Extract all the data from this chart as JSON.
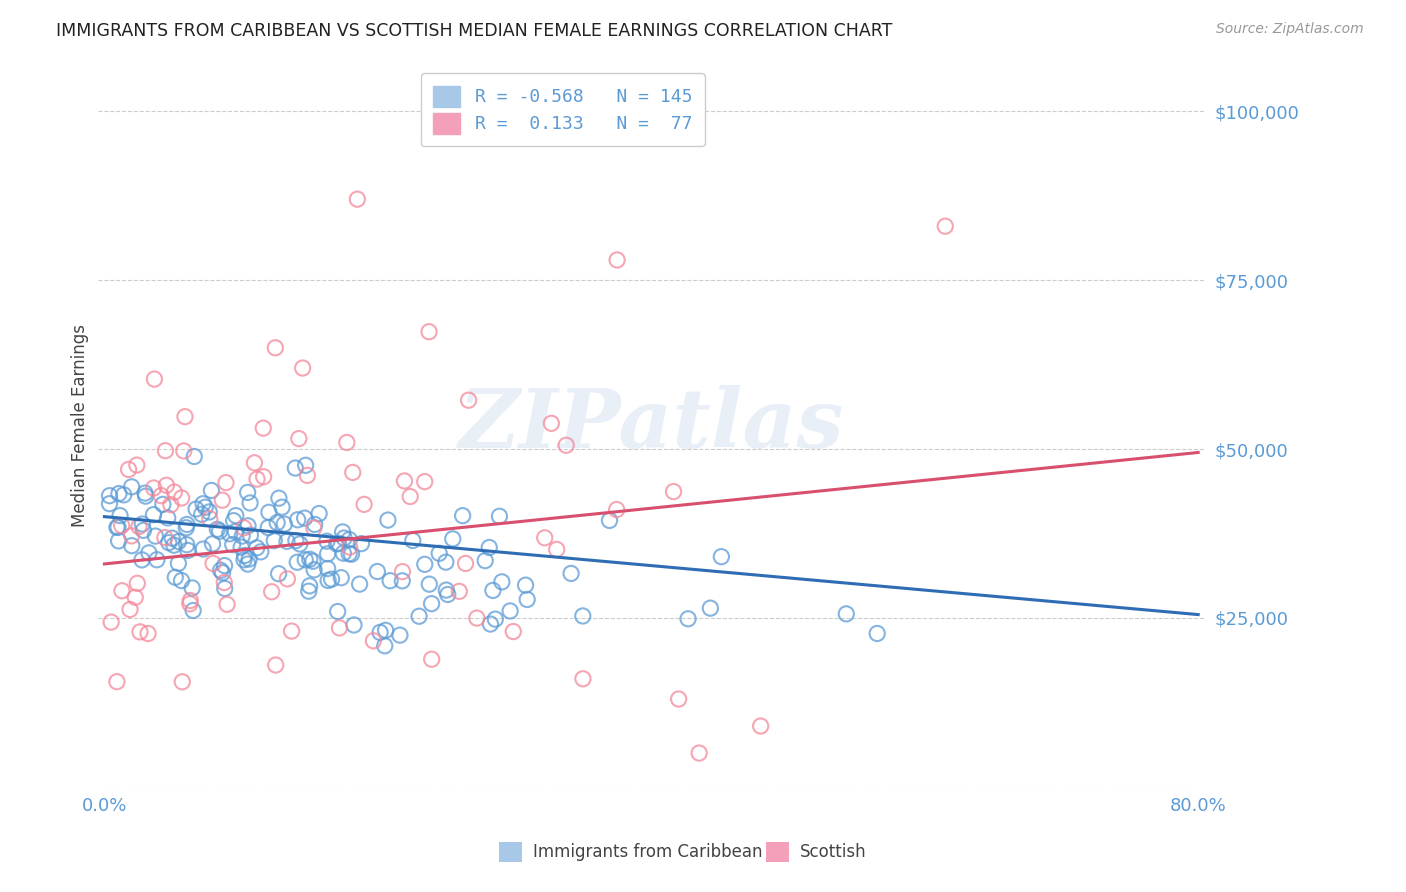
{
  "title": "IMMIGRANTS FROM CARIBBEAN VS SCOTTISH MEDIAN FEMALE EARNINGS CORRELATION CHART",
  "source": "Source: ZipAtlas.com",
  "ylabel": "Median Female Earnings",
  "yticks": [
    0,
    25000,
    50000,
    75000,
    100000
  ],
  "ytick_labels": [
    "",
    "$25,000",
    "$50,000",
    "$75,000",
    "$100,000"
  ],
  "xlim": [
    -0.005,
    0.805
  ],
  "ylim": [
    0,
    107000
  ],
  "watermark_text": "ZIPatlas",
  "blue_scatter_color": "#5b9bd5",
  "pink_scatter_color": "#f4879a",
  "blue_line_color": "#2e6db4",
  "pink_line_color": "#d94f6e",
  "title_color": "#222222",
  "axis_label_color": "#5b9bd5",
  "grid_color": "#cccccc",
  "background_color": "#ffffff",
  "legend_blue_label": "R = -0.568   N = 145",
  "legend_pink_label": "R =  0.133   N =  77",
  "blue_line_y0": 40000,
  "blue_line_y1": 25500,
  "pink_line_y0": 33000,
  "pink_line_y1": 49500,
  "blue_N": 145,
  "pink_N": 77,
  "blue_seed": 42,
  "pink_seed": 99,
  "bottom_legend_blue": "Immigrants from Caribbean",
  "bottom_legend_pink": "Scottish"
}
